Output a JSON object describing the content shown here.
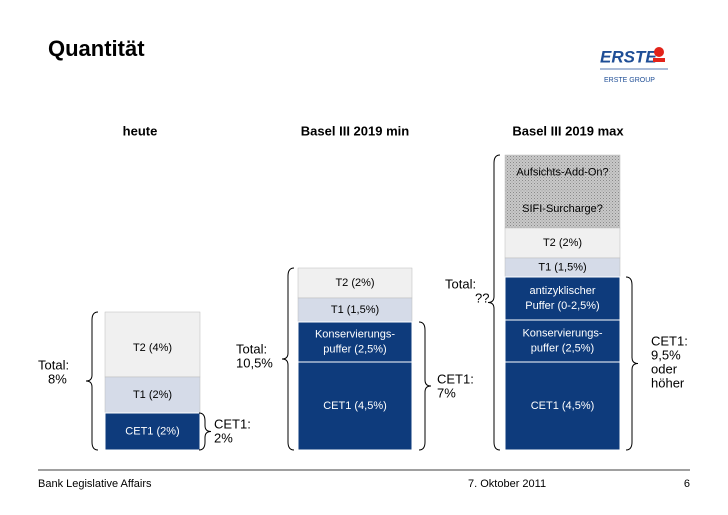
{
  "header": {
    "title": "Quantität",
    "logo": {
      "brand": "ERSTE",
      "group": "ERSTE GROUP"
    }
  },
  "columns": [
    {
      "heading": "heute",
      "blocks": [
        {
          "lines": [
            "T2 (4%)"
          ]
        },
        {
          "lines": [
            "T1 (2%)"
          ]
        },
        {
          "lines": [
            "CET1 (2%)"
          ]
        }
      ]
    },
    {
      "heading": "Basel III 2019 min",
      "blocks": [
        {
          "lines": [
            "T2 (2%)"
          ]
        },
        {
          "lines": [
            "T1 (1,5%)"
          ]
        },
        {
          "lines": [
            "Konservierungs-",
            "puffer (2,5%)"
          ]
        },
        {
          "lines": [
            "CET1 (4,5%)"
          ]
        }
      ]
    },
    {
      "heading": "Basel III 2019 max",
      "blocks": [
        {
          "lines": [
            "Aufsichts-Add-On?"
          ]
        },
        {
          "lines": [
            "SIFI-Surcharge?"
          ]
        },
        {
          "lines": [
            "T2 (2%)"
          ]
        },
        {
          "lines": [
            "T1 (1,5%)"
          ]
        },
        {
          "lines": [
            "antizyklischer",
            "Puffer (0-2,5%)"
          ]
        },
        {
          "lines": [
            "Konservierungs-",
            "puffer (2,5%)"
          ]
        },
        {
          "lines": [
            "CET1 (4,5%)"
          ]
        }
      ]
    }
  ],
  "annotations": [
    {
      "lines": [
        "Total:",
        "8%"
      ]
    },
    {
      "lines": [
        "CET1:",
        "2%"
      ]
    },
    {
      "lines": [
        "Total:",
        "10,5%"
      ]
    },
    {
      "lines": [
        "CET1:",
        "7%"
      ]
    },
    {
      "lines": [
        "Total:",
        "??"
      ]
    },
    {
      "lines": [
        "CET1:",
        "9,5%",
        "oder",
        "höher"
      ]
    }
  ],
  "footer": {
    "left": "Bank Legislative Affairs",
    "date": "7. Oktober 2011",
    "page": "6"
  }
}
